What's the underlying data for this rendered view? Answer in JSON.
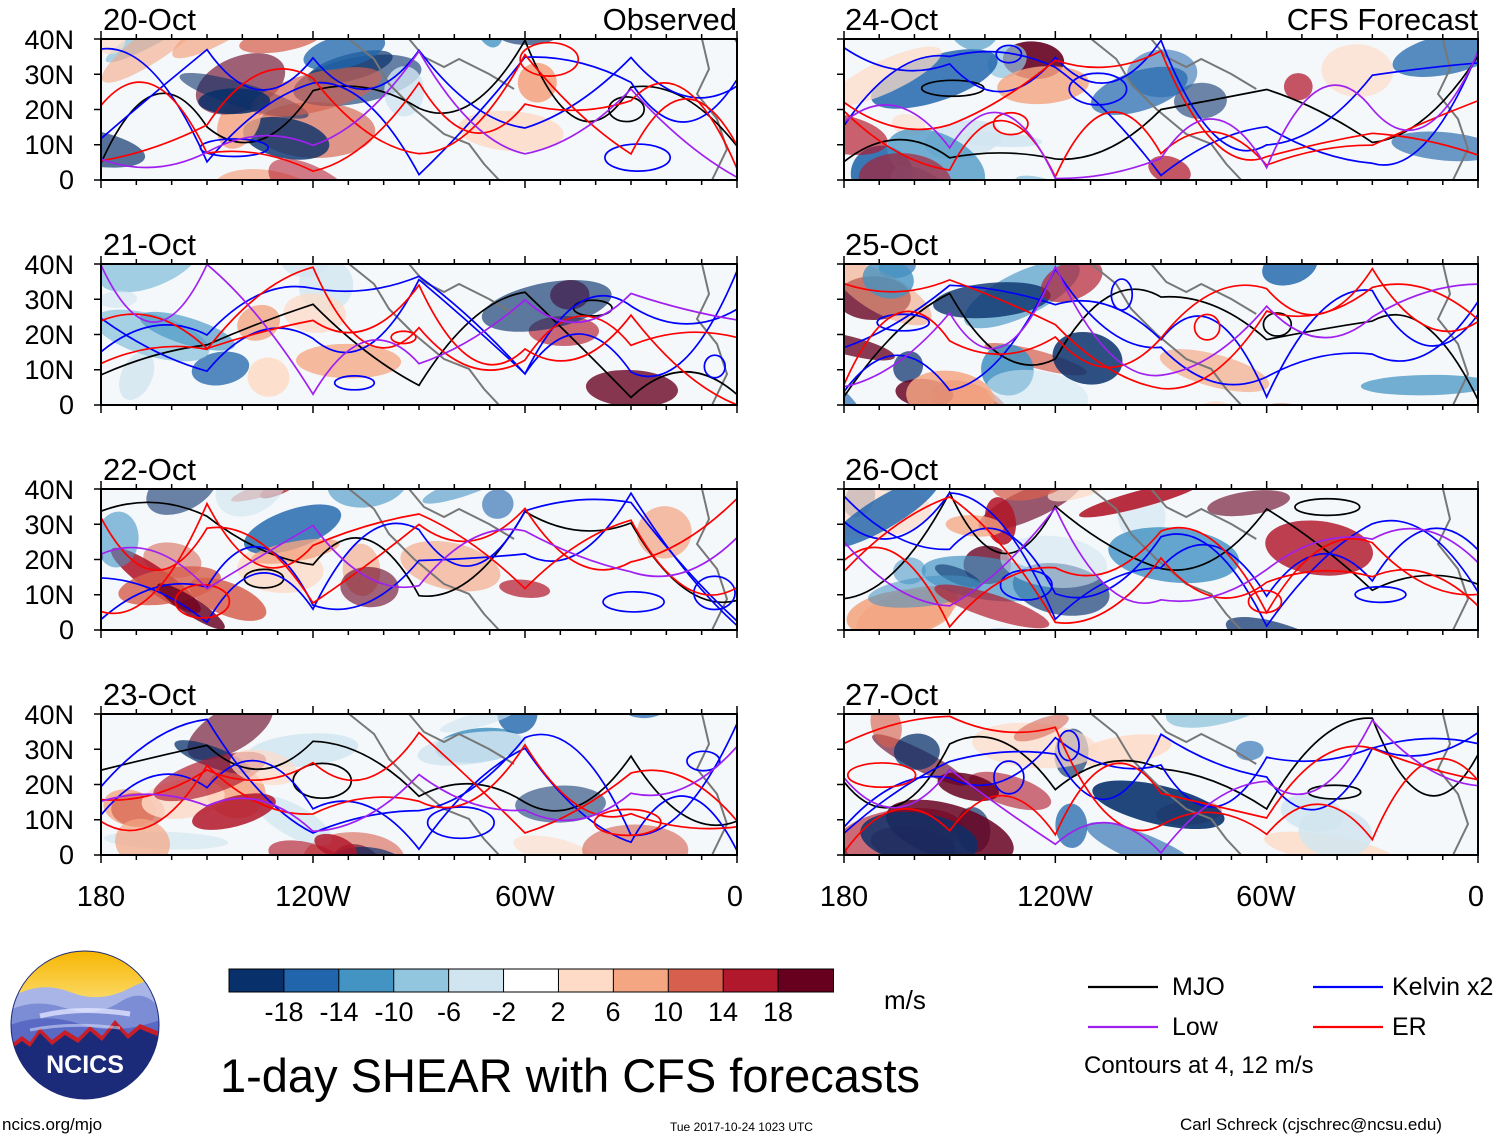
{
  "left_tag": "Observed",
  "right_tag": "CFS Forecast",
  "lat_labels": [
    "40N",
    "30N",
    "20N",
    "10N",
    "0"
  ],
  "lon_labels": [
    "180",
    "120W",
    "60W",
    "0"
  ],
  "observed_panels": [
    {
      "date": "20-Oct"
    },
    {
      "date": "21-Oct"
    },
    {
      "date": "22-Oct"
    },
    {
      "date": "23-Oct"
    }
  ],
  "forecast_panels": [
    {
      "date": "24-Oct"
    },
    {
      "date": "25-Oct"
    },
    {
      "date": "26-Oct"
    },
    {
      "date": "27-Oct"
    }
  ],
  "colorbar": {
    "unit": "m/s",
    "labels": [
      "-18",
      "-14",
      "-10",
      "-6",
      "-2",
      "2",
      "6",
      "10",
      "14",
      "18"
    ],
    "colors": [
      "#08306b",
      "#2166ac",
      "#4393c3",
      "#92c5de",
      "#d1e5f0",
      "#ffffff",
      "#fddbc7",
      "#f4a582",
      "#d6604d",
      "#b2182b",
      "#67001f"
    ]
  },
  "legend": {
    "items": [
      {
        "label": "MJO",
        "color": "#000000"
      },
      {
        "label": "Kelvin x2",
        "color": "#0000ff"
      },
      {
        "label": "Low",
        "color": "#a020f0"
      },
      {
        "label": "ER",
        "color": "#ff0000"
      }
    ],
    "note": "Contours at 4, 12 m/s"
  },
  "logo_text": "NCICS",
  "title": "1-day SHEAR with CFS forecasts",
  "footer": {
    "url": "ncics.org/mjo",
    "timestamp": "Tue 2017-10-24 1023 UTC",
    "credit": "Carl Schreck (cjschrec@ncsu.edu)"
  }
}
